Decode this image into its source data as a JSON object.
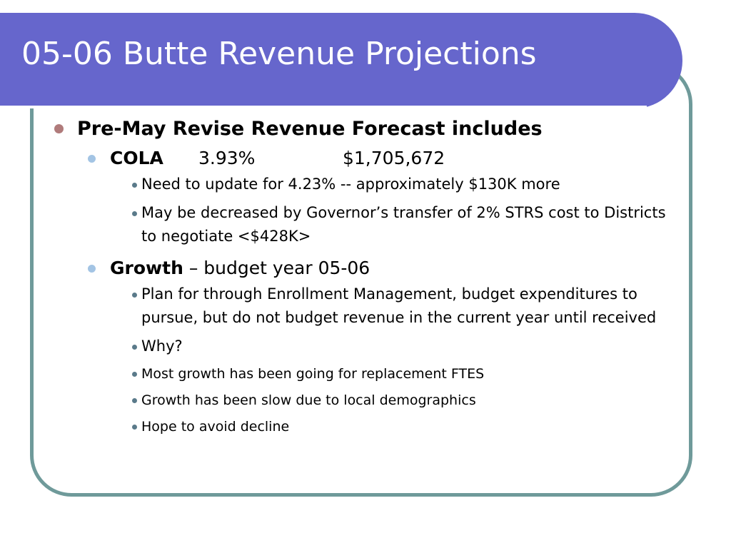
{
  "slide": {
    "title": "05-06 Butte Revenue Projections",
    "colors": {
      "title_bar": "#6666cc",
      "frame_border": "#6f9a9a",
      "bullet_level1": "#b07b7b",
      "bullet_level2": "#a3c4e4",
      "bullet_level3": "#5a7a8a"
    },
    "bullets": [
      {
        "text": "Pre-May Revise Revenue Forecast includes",
        "children": [
          {
            "label": "COLA",
            "percent": "3.93%",
            "amount": "$1,705,672",
            "children": [
              "Need to update for 4.23% -- approximately $130K more",
              "May be decreased by Governor’s transfer of 2% STRS cost to Districts to negotiate <$428K>"
            ]
          },
          {
            "label": "Growth",
            "rest": " – budget year 05-06",
            "children": [
              "Plan for through Enrollment Management, budget expenditures to pursue, but do not budget revenue in the current year until received",
              "Why?",
              "Most growth has been going for replacement FTES",
              "Growth has been slow due to local demographics",
              "Hope to avoid decline"
            ]
          }
        ]
      }
    ]
  }
}
